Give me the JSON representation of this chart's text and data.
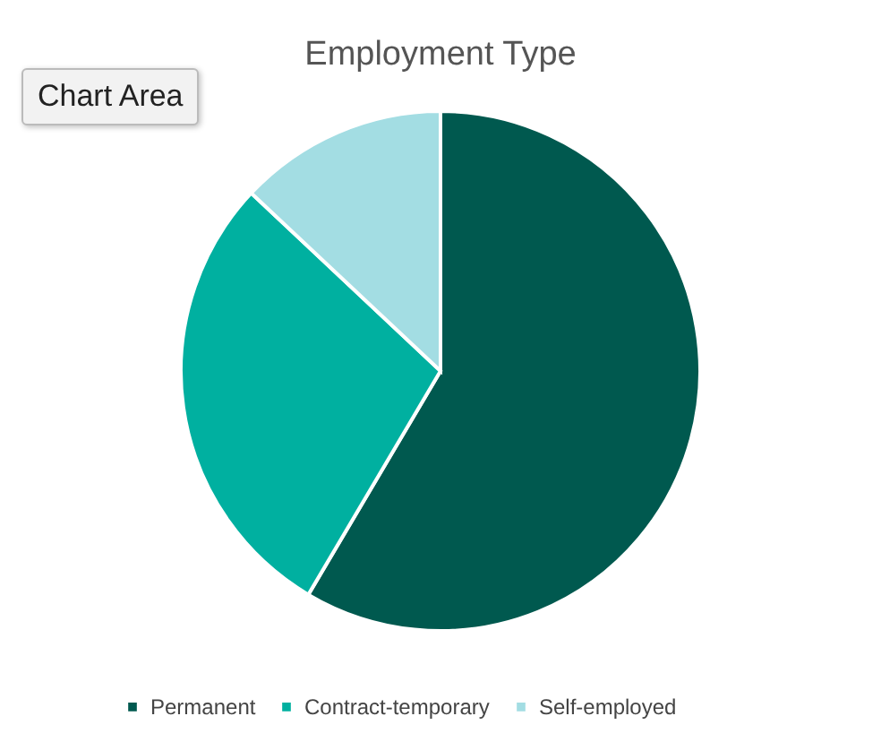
{
  "chart_data": {
    "type": "pie",
    "title": "Employment Type",
    "categories": [
      "Permanent",
      "Contract-temporary",
      "Self-employed"
    ],
    "values": [
      58.5,
      28.5,
      13
    ],
    "colors": [
      "#00594f",
      "#00b0a0",
      "#a3dde3"
    ],
    "legend": "bottom",
    "annotations": [
      "Chart Area"
    ]
  }
}
